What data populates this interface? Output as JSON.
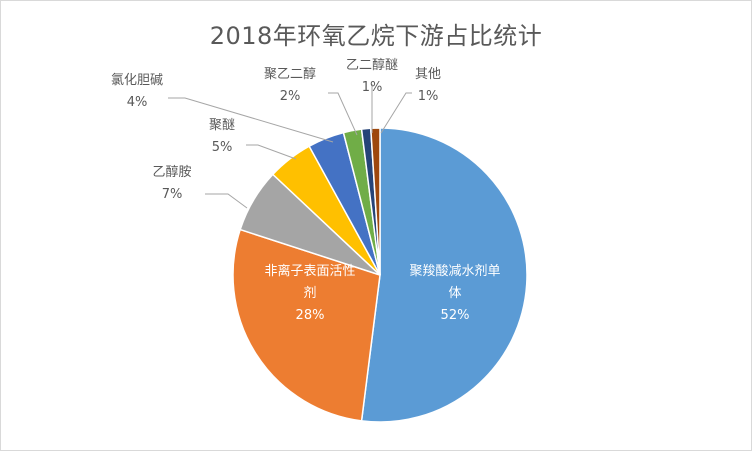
{
  "chart_data": {
    "type": "pie",
    "title": "2018年环氧乙烷下游占比统计",
    "slices": [
      {
        "name": "聚羧酸减水剂单体",
        "value": 52,
        "label_pct": "52%",
        "color": "#5b9bd5",
        "label_lines": [
          "聚羧酸减水剂单",
          "体"
        ],
        "inside": true
      },
      {
        "name": "非离子表面活性剂",
        "value": 28,
        "label_pct": "28%",
        "color": "#ed7d31",
        "label_lines": [
          "非离子表面活性",
          "剂"
        ],
        "inside": true
      },
      {
        "name": "乙醇胺",
        "value": 7,
        "label_pct": "7%",
        "color": "#a5a5a5",
        "label_lines": [
          "乙醇胺"
        ],
        "inside": false
      },
      {
        "name": "聚醚",
        "value": 5,
        "label_pct": "5%",
        "color": "#ffc000",
        "label_lines": [
          "聚醚"
        ],
        "inside": false
      },
      {
        "name": "氯化胆碱",
        "value": 4,
        "label_pct": "4%",
        "color": "#4472c4",
        "label_lines": [
          "氯化胆碱"
        ],
        "inside": false
      },
      {
        "name": "聚乙二醇",
        "value": 2,
        "label_pct": "2%",
        "color": "#70ad47",
        "label_lines": [
          "聚乙二醇"
        ],
        "inside": false
      },
      {
        "name": "乙二醇醚",
        "value": 1,
        "label_pct": "1%",
        "color": "#264478",
        "label_lines": [
          "乙二醇醚"
        ],
        "inside": false
      },
      {
        "name": "其他",
        "value": 1,
        "label_pct": "1%",
        "color": "#9e480e",
        "label_lines": [
          "其他"
        ],
        "inside": false
      }
    ]
  }
}
